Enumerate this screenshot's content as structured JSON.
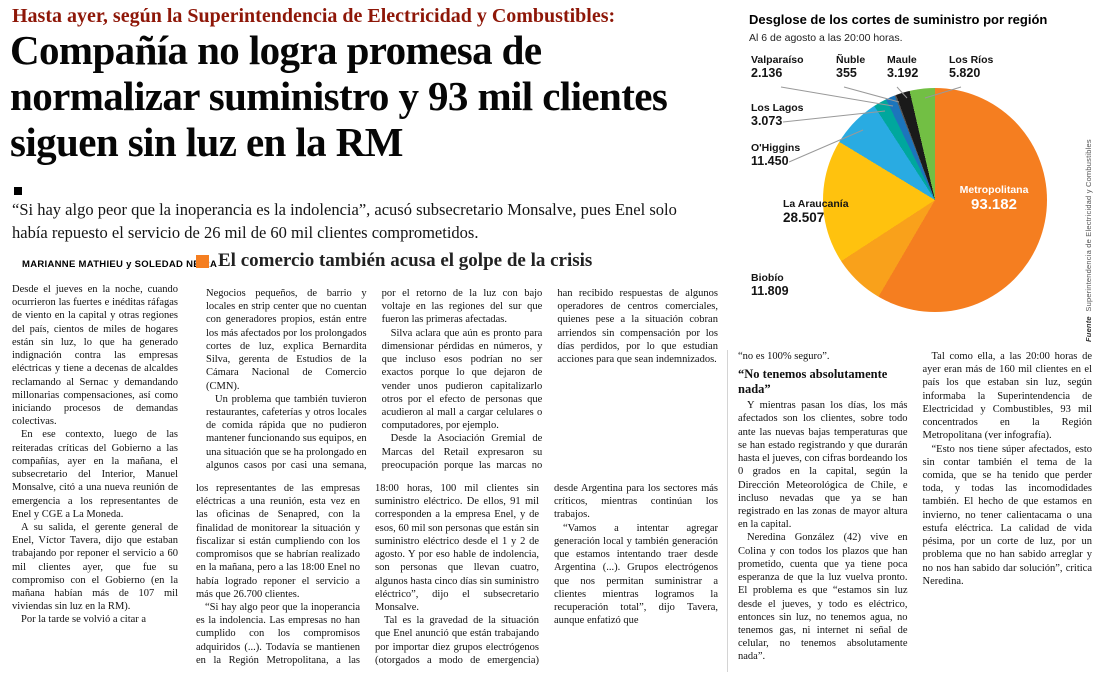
{
  "article": {
    "kicker": "Hasta ayer, según la Superintendencia de Electricidad y Combustibles:",
    "headline": "Compañía no logra promesa de normalizar suministro y 93 mil clientes siguen sin luz en la RM",
    "deck": "“Si hay algo peor que la inoperancia es la indolencia”, acusó subsecretario Monsalve, pues Enel solo había repuesto el servicio de 26 mil de 60 mil clientes comprometidos.",
    "byline": "MARIANNE MATHIEU y SOLEDAD NEIRA",
    "lead_paragraphs": [
      "Desde el jueves en la noche, cuando ocurrieron las fuertes e inéditas ráfagas de viento en la capital y otras regiones del país, cientos de miles de hogares están sin luz, lo que ha generado indignación contra las empresas eléctricas y tiene a decenas de alcaldes reclamando al Sernac y demandando millonarias compensaciones, así como iniciando procesos de demandas colectivas.",
      "En ese contexto, luego de las reiteradas críticas del Gobierno a las compañías, ayer en la mañana, el subsecretario del Interior, Manuel Monsalve, citó a una nueva reunión de emergencia a los representantes de Enel y CGE a La Moneda.",
      "A su salida, el gerente general de Enel, Víctor Tavera, dijo que estaban trabajando por reponer el servicio a 60 mil clientes ayer, que fue su compromiso con el Gobierno (en la mañana habían más de 107 mil viviendas sin luz en la RM).",
      "Por la tarde se volvió a citar a"
    ],
    "continuation_paragraphs": [
      "los representantes de las empresas eléctricas a una reunión, esta vez en las oficinas de Senapred, con la finalidad de monitorear la situación y fiscalizar si están cumpliendo con los compromisos que se habrían realizado en la mañana, pero a las 18:00 Enel no había logrado reponer el servicio a más que 26.700 clientes.",
      "“Si hay algo peor que la inoperancia es la indolencia. Las empresas no han cumplido con los compromisos adquiridos (...). Todavía se mantienen en la Región Metropolitana, a las 18:00 horas, 100 mil clientes sin suministro eléctrico. De ellos, 91 mil corresponden a la empresa Enel, y de esos, 60 mil son personas que están sin suministro eléctrico desde el 1 y 2 de agosto. Y por eso hable de indolencia, son personas que llevan cuatro, algunos hasta cinco días sin suministro eléctrico”, dijo el subsecretario Monsalve.",
      "Tal es la gravedad de la situación que Enel anunció que están trabajando por importar diez grupos electrógenos (otorgados a modo de emergencia) desde Argentina para los sectores más críticos, mientras continúan los trabajos.",
      "“Vamos a intentar agregar generación local y también generación que estamos intentando traer desde Argentina (...). Grupos electrógenos que nos permitan suministrar a clientes mientras logramos la recuperación total”, dijo Tavera, aunque enfatizó que"
    ],
    "right_items": [
      {
        "type": "p",
        "text": "“no es 100% seguro”."
      },
      {
        "type": "subhead",
        "text": "“No tenemos absolutamente nada”"
      },
      {
        "type": "p",
        "text": "Y mientras pasan los días, los más afectados son los clientes, sobre todo ante las nuevas bajas temperaturas que se han estado registrando y que durarán hasta el jueves, con cifras bordeando los 0 grados en la capital, según la Dirección Meteorológica de Chile, e incluso nevadas que ya se han registrado en las zonas de mayor altura en la capital."
      },
      {
        "type": "p",
        "text": "Neredina González (42) vive en Colina y con todos los plazos que han prometido, cuenta que ya tiene poca esperanza de que la luz vuelva pronto. El problema es que “estamos sin luz desde el jueves, y todo es eléctrico, entonces sin luz, no tenemos agua, no tenemos gas, ni internet ni señal de celular, no tenemos absolutamente nada”."
      },
      {
        "type": "p",
        "text": "Tal como ella, a las 20:00 horas de ayer eran más de 160 mil clientes en el país los que estaban sin luz, según informaba la Superintendencia de Electricidad y Combustibles, 93 mil concentrados en la Región Metropolitana (ver infografía)."
      },
      {
        "type": "p",
        "text": "“Esto nos tiene súper afectados, esto sin contar también el tema de la comida, que se ha tenido que perder toda, y todas las incomodidades también. El hecho de que estamos en invierno, no tener calientacama o una estufa eléctrica. La calidad de vida pésima, por un corte de luz, por un problema que no han sabido arreglar y no nos han sabido dar solución”, critica Neredina."
      }
    ]
  },
  "commerce": {
    "header": "El comercio también acusa el golpe de la crisis",
    "accent_color": "#f57e20",
    "paragraphs": [
      "Negocios pequeños, de barrio y locales en strip center que no cuentan con generadores propios, están entre los más afectados por los prolongados cortes de luz, explica Bernardita Silva, gerenta de Estudios de la Cámara Nacional de Comercio (CMN).",
      "Un problema que también tuvieron restaurantes, cafeterías y otros locales de comida rápida que no pudieron mantener funcionando sus equipos, en una situación que se ha prolongado en algunos casos por casi una semana, por el retorno de la luz con bajo voltaje en las regiones del sur que fueron las primeras afectadas.",
      "Silva aclara que aún es pronto para dimensionar pérdidas en números, y que incluso esos podrían no ser exactos porque lo que dejaron de vender unos pudieron capitalizarlo otros por el efecto de personas que acudieron al mall a cargar celulares o computadores, por ejemplo.",
      "Desde la Asociación Gremial de Marcas del Retail expresaron su preocupación porque las marcas no han recibido respuestas de algunos operadores de centros comerciales, quienes pese a la situación cobran arriendos sin compensación por los días perdidos, por lo que estudian acciones para que sean indemnizados."
    ]
  },
  "infographic": {
    "title": "Desglose de los cortes de suministro por región",
    "subtitle": "Al 6 de agosto a las 20:00 horas.",
    "source_label": "Fuente",
    "source": "Superintendencia de Electricidad y Combustibles"
  },
  "chart_data": {
    "type": "pie",
    "title": "Desglose de los cortes de suministro por región",
    "subtitle": "Al 6 de agosto a las 20:00 horas.",
    "unit": "clientes sin suministro",
    "total": 159524,
    "legend_position": "labels-around-pie",
    "slices": [
      {
        "label": "Metropolitana",
        "value": 93182,
        "display": "93.182",
        "color": "#F57E20"
      },
      {
        "label": "Biobío",
        "value": 11809,
        "display": "11.809",
        "color": "#F9A11B"
      },
      {
        "label": "La Araucanía",
        "value": 28507,
        "display": "28.507",
        "color": "#FFC20E"
      },
      {
        "label": "O'Higgins",
        "value": 11450,
        "display": "11.450",
        "color": "#29ABE2"
      },
      {
        "label": "Los Lagos",
        "value": 3073,
        "display": "3.073",
        "color": "#00A79D"
      },
      {
        "label": "Valparaíso",
        "value": 2136,
        "display": "2.136",
        "color": "#1C75BC"
      },
      {
        "label": "Ñuble",
        "value": 355,
        "display": "355",
        "color": "#58595B"
      },
      {
        "label": "Maule",
        "value": 3192,
        "display": "3.192",
        "color": "#1A1A1A"
      },
      {
        "label": "Los Ríos",
        "value": 5820,
        "display": "5.820",
        "color": "#72BF44"
      }
    ],
    "source": "Fuente: Superintendencia de Electricidad y Combustibles"
  }
}
